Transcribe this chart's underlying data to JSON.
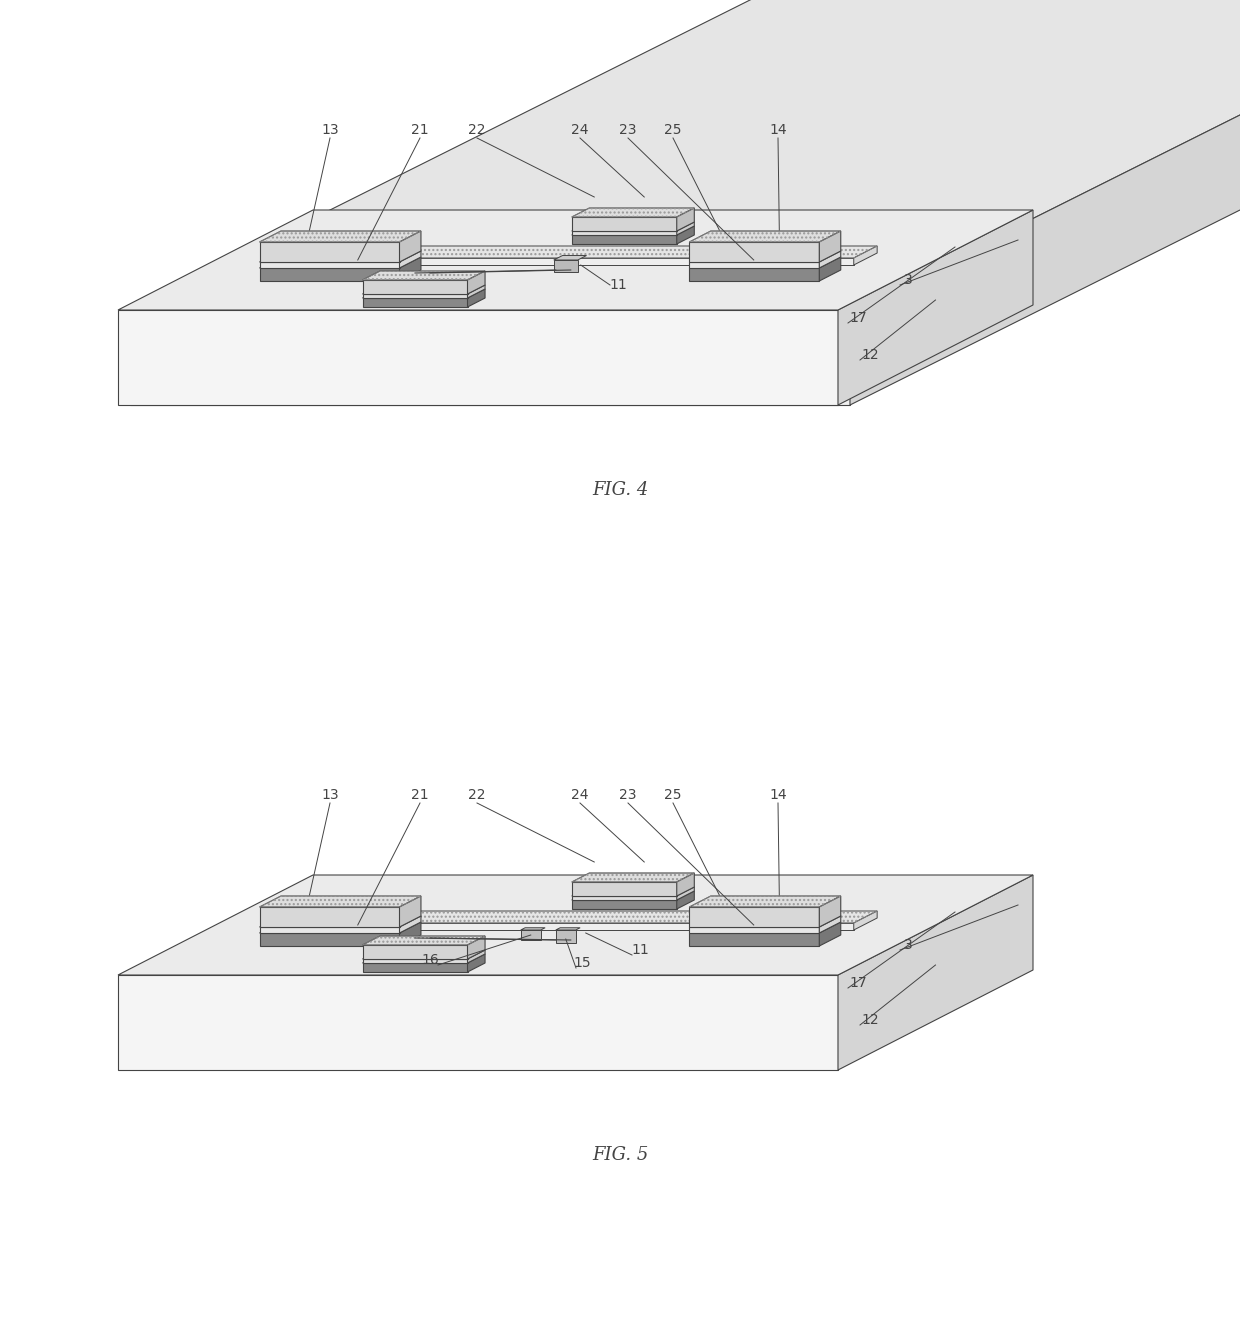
{
  "fig_width": 12.4,
  "fig_height": 13.35,
  "bg_color": "#ffffff",
  "lc": "#444444",
  "fig4_label": "FIG. 4",
  "fig5_label": "FIG. 5",
  "ann_fs": 10,
  "fig_fs": 12
}
